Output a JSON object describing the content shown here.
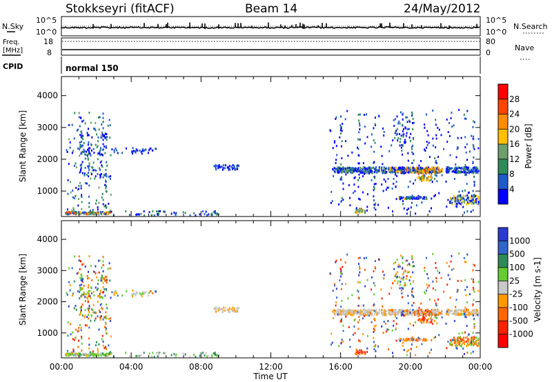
{
  "header": {
    "station": "Stokkseyri (fitACF)",
    "beam": "Beam 14",
    "date": "24/May/2012"
  },
  "noise_panel": {
    "left_label": "N.Sky",
    "right_label": "N.Search",
    "y_ticks": [
      "10^5",
      "10^0"
    ],
    "y_ticks_right": [
      "10^5",
      "10^0"
    ]
  },
  "freq_panel": {
    "left_label_1": "Freq.",
    "left_label_2": "[MHz]",
    "right_label": "Nave",
    "y_ticks": [
      "18",
      "8"
    ],
    "y_ticks_right": [
      "80",
      "0"
    ]
  },
  "cpid": {
    "label": "CPID",
    "mode": "normal 150"
  },
  "x_axis": {
    "title": "Time UT",
    "ticks": [
      "00:00",
      "04:00",
      "08:00",
      "12:00",
      "16:00",
      "20:00",
      "00:00"
    ]
  },
  "chart_data": [
    {
      "type": "heatmap",
      "name": "power",
      "ylabel": "Slant Range [km]",
      "xlabel": "",
      "yticks": [
        "1000",
        "2000",
        "3000",
        "4000"
      ],
      "ylim": [
        200,
        4600
      ],
      "xlim_hours": [
        0,
        24
      ],
      "colorbar": {
        "label": "Power [dB]",
        "ticks": [
          "4",
          "8",
          "12",
          "16",
          "20",
          "24",
          "28"
        ],
        "colors": [
          "#0000ff",
          "#1e5ac8",
          "#2e8b57",
          "#6e9e6e",
          "#ffc000",
          "#ff8c00",
          "#ff4500",
          "#ff0000"
        ]
      }
    },
    {
      "type": "heatmap",
      "name": "velocity",
      "ylabel": "Slant Range [km]",
      "xlabel": "Time UT",
      "yticks": [
        "1000",
        "2000",
        "3000",
        "4000"
      ],
      "ylim": [
        200,
        4600
      ],
      "xlim_hours": [
        0,
        24
      ],
      "colorbar": {
        "label": "Velocity [m s-1]",
        "ticks": [
          "1000",
          "500",
          "100",
          "25",
          "-25",
          "-100",
          "-500",
          "-1000"
        ],
        "colors": [
          "#2b3bd0",
          "#3366cc",
          "#2e8b57",
          "#66cc33",
          "#c8c8c8",
          "#ff9900",
          "#ff6600",
          "#ff2200",
          "#ff0000"
        ]
      }
    }
  ]
}
